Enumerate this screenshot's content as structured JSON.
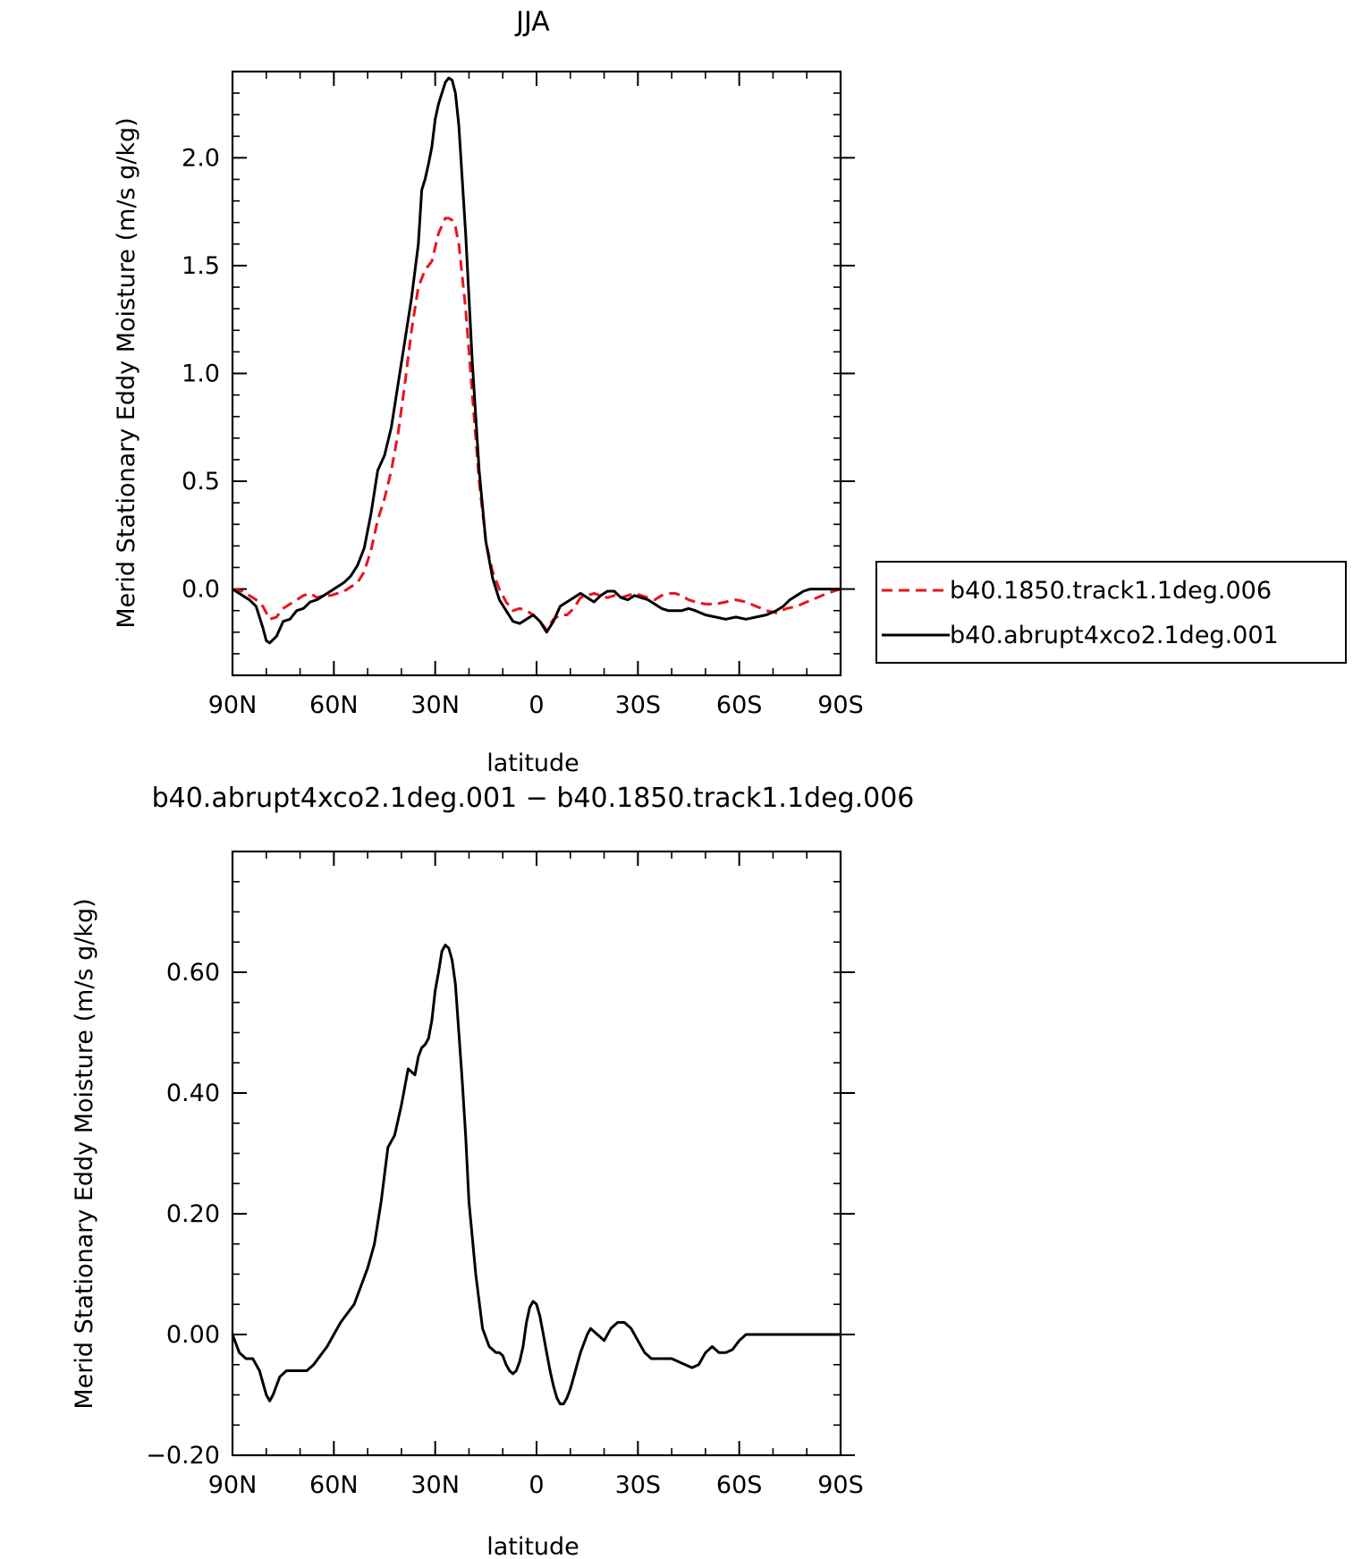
{
  "chart_data": [
    {
      "type": "line",
      "title": "JJA",
      "xlabel": "latitude",
      "ylabel": "Merid Stationary Eddy Moisture (m/s g/kg)",
      "xlim": [
        90,
        -90
      ],
      "ylim": [
        -0.4,
        2.4
      ],
      "xticks": [
        90,
        60,
        30,
        0,
        -30,
        -60,
        -90
      ],
      "xtick_labels": [
        "90N",
        "60N",
        "30N",
        "0",
        "30S",
        "60S",
        "90S"
      ],
      "yticks": [
        0.0,
        0.5,
        1.0,
        1.5,
        2.0
      ],
      "ytick_labels": [
        "0.0",
        "0.5",
        "1.0",
        "1.5",
        "2.0"
      ],
      "legend_placement": "right",
      "series": [
        {
          "name": "b40.1850.track1.1deg.006",
          "color": "#e8141b",
          "dash": "dashed",
          "x": [
            90,
            87,
            85,
            83,
            81,
            79,
            77,
            75,
            73,
            71,
            69,
            67,
            65,
            63,
            61,
            59,
            57,
            55,
            53,
            51,
            49,
            47,
            45,
            43,
            41,
            39,
            37,
            35,
            33,
            31,
            29,
            27,
            26,
            25,
            24,
            23,
            21,
            19,
            17,
            15,
            13,
            11,
            9,
            7,
            5,
            3,
            1,
            -1,
            -3,
            -5,
            -7,
            -9,
            -11,
            -13,
            -15,
            -17,
            -19,
            -21,
            -23,
            -25,
            -27,
            -29,
            -31,
            -33,
            -35,
            -37,
            -39,
            -41,
            -43,
            -45,
            -47,
            -50,
            -53,
            -56,
            -59,
            -62,
            -65,
            -68,
            -71,
            -74,
            -77,
            -80,
            -83,
            -86,
            -88,
            -90
          ],
          "y": [
            0.0,
            -0.01,
            -0.03,
            -0.05,
            -0.08,
            -0.14,
            -0.13,
            -0.09,
            -0.07,
            -0.05,
            -0.03,
            -0.02,
            -0.04,
            -0.03,
            -0.03,
            -0.02,
            -0.01,
            0.01,
            0.03,
            0.08,
            0.18,
            0.32,
            0.42,
            0.55,
            0.72,
            0.95,
            1.2,
            1.4,
            1.48,
            1.52,
            1.65,
            1.72,
            1.72,
            1.71,
            1.68,
            1.6,
            1.3,
            0.9,
            0.5,
            0.22,
            0.08,
            0.0,
            -0.06,
            -0.1,
            -0.09,
            -0.1,
            -0.12,
            -0.15,
            -0.19,
            -0.14,
            -0.12,
            -0.12,
            -0.09,
            -0.04,
            -0.03,
            -0.02,
            -0.03,
            -0.04,
            -0.03,
            -0.04,
            -0.03,
            -0.02,
            -0.03,
            -0.04,
            -0.05,
            -0.03,
            -0.02,
            -0.02,
            -0.03,
            -0.05,
            -0.06,
            -0.07,
            -0.07,
            -0.06,
            -0.05,
            -0.06,
            -0.08,
            -0.1,
            -0.11,
            -0.09,
            -0.08,
            -0.06,
            -0.04,
            -0.02,
            -0.01,
            0.0
          ]
        },
        {
          "name": "b40.abrupt4xco2.1deg.001",
          "color": "#000000",
          "dash": "solid",
          "x": [
            90,
            87,
            85,
            83,
            81,
            80,
            79,
            77,
            75,
            73,
            71,
            69,
            67,
            65,
            63,
            61,
            59,
            57,
            55,
            53,
            51,
            49,
            47,
            45,
            43,
            41,
            39,
            37,
            35,
            34,
            33,
            32,
            31,
            30,
            29,
            28,
            27,
            26,
            25,
            24,
            23,
            21,
            19,
            17,
            15,
            13,
            11,
            9,
            7,
            5,
            3,
            1,
            -1,
            -3,
            -5,
            -7,
            -9,
            -11,
            -13,
            -15,
            -17,
            -19,
            -21,
            -23,
            -25,
            -27,
            -29,
            -31,
            -33,
            -35,
            -37,
            -39,
            -41,
            -43,
            -45,
            -47,
            -50,
            -53,
            -56,
            -59,
            -62,
            -65,
            -68,
            -71,
            -73,
            -75,
            -77,
            -79,
            -81,
            -83,
            -85,
            -88,
            -90
          ],
          "y": [
            0.0,
            -0.03,
            -0.05,
            -0.08,
            -0.18,
            -0.24,
            -0.25,
            -0.22,
            -0.15,
            -0.14,
            -0.1,
            -0.09,
            -0.06,
            -0.05,
            -0.03,
            -0.01,
            0.01,
            0.03,
            0.06,
            0.11,
            0.19,
            0.35,
            0.55,
            0.62,
            0.75,
            0.95,
            1.15,
            1.35,
            1.6,
            1.85,
            1.9,
            1.97,
            2.05,
            2.18,
            2.25,
            2.3,
            2.35,
            2.37,
            2.36,
            2.3,
            2.15,
            1.65,
            1.05,
            0.55,
            0.22,
            0.05,
            -0.05,
            -0.1,
            -0.15,
            -0.16,
            -0.14,
            -0.12,
            -0.15,
            -0.2,
            -0.15,
            -0.08,
            -0.06,
            -0.04,
            -0.02,
            -0.04,
            -0.06,
            -0.03,
            -0.01,
            -0.01,
            -0.04,
            -0.05,
            -0.03,
            -0.04,
            -0.05,
            -0.07,
            -0.09,
            -0.1,
            -0.1,
            -0.1,
            -0.09,
            -0.1,
            -0.12,
            -0.13,
            -0.14,
            -0.13,
            -0.14,
            -0.13,
            -0.12,
            -0.1,
            -0.08,
            -0.05,
            -0.03,
            -0.01,
            0.0,
            0.0,
            0.0,
            0.0,
            0.0
          ]
        }
      ]
    },
    {
      "type": "line",
      "title": "b40.abrupt4xco2.1deg.001 − b40.1850.track1.1deg.006",
      "xlabel": "latitude",
      "ylabel": "Merid Stationary Eddy Moisture (m/s g/kg)",
      "xlim": [
        90,
        -90
      ],
      "ylim": [
        -0.2,
        0.8
      ],
      "xticks": [
        90,
        60,
        30,
        0,
        -30,
        -60,
        -90
      ],
      "xtick_labels": [
        "90N",
        "60N",
        "30N",
        "0",
        "30S",
        "60S",
        "90S"
      ],
      "yticks": [
        -0.2,
        0.0,
        0.2,
        0.4,
        0.6
      ],
      "ytick_labels": [
        "−0.20",
        "0.00",
        "0.20",
        "0.40",
        "0.60"
      ],
      "series": [
        {
          "color": "#000000",
          "dash": "solid",
          "x": [
            90,
            88,
            86,
            84,
            82,
            80,
            79,
            78,
            76,
            74,
            72,
            70,
            68,
            66,
            64,
            62,
            60,
            58,
            56,
            54,
            52,
            50,
            48,
            46,
            44,
            42,
            40,
            38,
            37,
            36,
            35,
            34,
            33,
            32,
            31,
            30,
            29,
            28,
            27,
            26,
            25,
            24,
            23,
            22,
            21,
            20,
            18,
            16,
            14,
            12,
            11,
            10,
            9,
            8,
            7,
            6,
            5,
            4,
            3,
            2,
            1,
            0,
            -1,
            -2,
            -3,
            -4,
            -5,
            -6,
            -7,
            -8,
            -9,
            -10,
            -11,
            -12,
            -13,
            -14,
            -15,
            -16,
            -18,
            -20,
            -22,
            -24,
            -26,
            -28,
            -30,
            -32,
            -34,
            -36,
            -38,
            -40,
            -42,
            -44,
            -46,
            -48,
            -50,
            -52,
            -54,
            -56,
            -58,
            -60,
            -62,
            -64,
            -66,
            -68,
            -70,
            -72,
            -74,
            -76,
            -78,
            -80,
            -82,
            -84,
            -86,
            -88,
            -90
          ],
          "y": [
            0.0,
            -0.03,
            -0.04,
            -0.04,
            -0.06,
            -0.1,
            -0.11,
            -0.1,
            -0.07,
            -0.06,
            -0.06,
            -0.06,
            -0.06,
            -0.05,
            -0.035,
            -0.02,
            0.0,
            0.02,
            0.035,
            0.05,
            0.08,
            0.11,
            0.15,
            0.22,
            0.31,
            0.33,
            0.38,
            0.44,
            0.435,
            0.43,
            0.46,
            0.475,
            0.48,
            0.49,
            0.52,
            0.57,
            0.6,
            0.635,
            0.645,
            0.64,
            0.62,
            0.58,
            0.5,
            0.42,
            0.33,
            0.22,
            0.1,
            0.01,
            -0.02,
            -0.03,
            -0.03,
            -0.035,
            -0.05,
            -0.06,
            -0.065,
            -0.06,
            -0.045,
            -0.02,
            0.02,
            0.045,
            0.055,
            0.05,
            0.03,
            0.0,
            -0.03,
            -0.06,
            -0.085,
            -0.105,
            -0.115,
            -0.115,
            -0.105,
            -0.09,
            -0.07,
            -0.05,
            -0.03,
            -0.015,
            0.0,
            0.01,
            0.0,
            -0.01,
            0.01,
            0.02,
            0.02,
            0.01,
            -0.01,
            -0.03,
            -0.04,
            -0.04,
            -0.04,
            -0.04,
            -0.045,
            -0.05,
            -0.055,
            -0.05,
            -0.03,
            -0.02,
            -0.03,
            -0.03,
            -0.025,
            -0.01,
            0.0,
            0.0,
            0.0,
            0.0,
            0.0,
            0.0,
            0.0,
            0.0,
            0.0,
            0.0,
            0.0,
            0.0,
            0.0,
            0.0,
            0.0
          ]
        }
      ]
    }
  ]
}
